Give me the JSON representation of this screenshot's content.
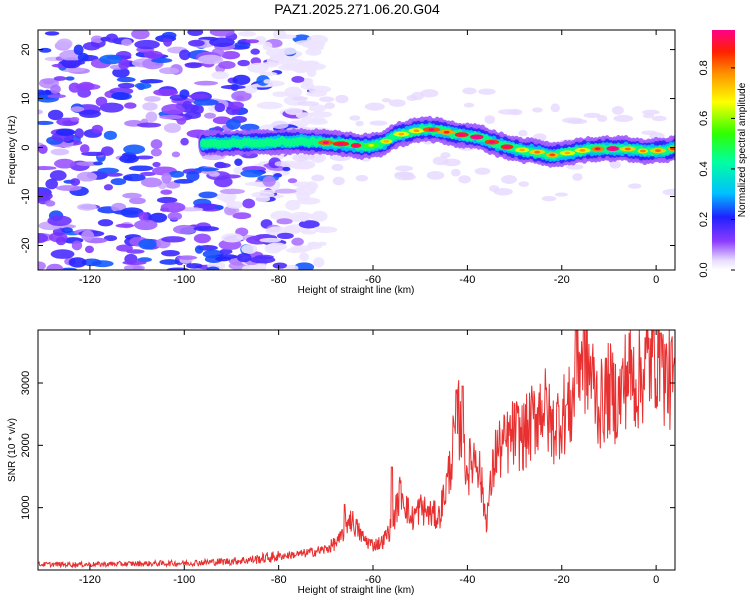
{
  "title": "PAZ1.2025.271.06.20.G04",
  "colors": {
    "snr_line": "#e83030",
    "frame": "#000000",
    "background": "#ffffff"
  },
  "chart_data": [
    {
      "type": "heatmap",
      "xlabel": "Height of straight line (km)",
      "ylabel": "Frequency (Hz)",
      "xlim": [
        -131,
        4
      ],
      "ylim": [
        -25,
        24
      ],
      "xticks": [
        -120,
        -100,
        -80,
        -60,
        -40,
        -20,
        0
      ],
      "yticks": [
        -20,
        -10,
        0,
        10,
        20
      ],
      "colorbar": {
        "label": "Normalized spectral amplitude",
        "range": [
          0,
          0.95
        ],
        "ticks": [
          0.0,
          0.2,
          0.4,
          0.6,
          0.8
        ]
      },
      "ridge": {
        "description": "dominant frequency ridge vs height",
        "points": [
          [
            -95,
            0.8
          ],
          [
            -90,
            1.0
          ],
          [
            -85,
            1.0
          ],
          [
            -80,
            1.2
          ],
          [
            -75,
            1.3
          ],
          [
            -70,
            1.0
          ],
          [
            -65,
            0.6
          ],
          [
            -62,
            0.2
          ],
          [
            -58,
            0.8
          ],
          [
            -55,
            2.5
          ],
          [
            -52,
            3.2
          ],
          [
            -49,
            3.8
          ],
          [
            -46,
            3.5
          ],
          [
            -43,
            2.8
          ],
          [
            -40,
            2.5
          ],
          [
            -37,
            2.0
          ],
          [
            -34,
            0.8
          ],
          [
            -30,
            -0.3
          ],
          [
            -26,
            -0.8
          ],
          [
            -22,
            -1.5
          ],
          [
            -18,
            -1.0
          ],
          [
            -14,
            -0.3
          ],
          [
            -10,
            -0.2
          ],
          [
            -6,
            -0.3
          ],
          [
            -2,
            -0.8
          ],
          [
            2,
            -0.5
          ],
          [
            4,
            -0.2
          ]
        ],
        "peak_amplitude": 0.95,
        "noise_region_height_max_km": -80,
        "noise_amplitude_range": [
          0.05,
          0.25
        ]
      }
    },
    {
      "type": "line",
      "xlabel": "Height of straight line (km)",
      "ylabel": "SNR (10 * v/v)",
      "xlim": [
        -131,
        4
      ],
      "ylim": [
        0,
        3850
      ],
      "xticks": [
        -120,
        -100,
        -80,
        -60,
        -40,
        -20,
        0
      ],
      "yticks": [
        1000,
        2000,
        3000
      ],
      "series": [
        {
          "name": "SNR",
          "envelope_points": [
            [
              -131,
              90
            ],
            [
              -120,
              90
            ],
            [
              -100,
              110
            ],
            [
              -90,
              140
            ],
            [
              -85,
              170
            ],
            [
              -80,
              220
            ],
            [
              -75,
              260
            ],
            [
              -70,
              330
            ],
            [
              -67,
              480
            ],
            [
              -65,
              850
            ],
            [
              -62,
              500
            ],
            [
              -60,
              400
            ],
            [
              -58,
              450
            ],
            [
              -56,
              700
            ],
            [
              -54,
              1300
            ],
            [
              -52,
              800
            ],
            [
              -50,
              1000
            ],
            [
              -48,
              900
            ],
            [
              -46,
              850
            ],
            [
              -44,
              1500
            ],
            [
              -42,
              2500
            ],
            [
              -40,
              1600
            ],
            [
              -38,
              1900
            ],
            [
              -36,
              800
            ],
            [
              -34,
              1900
            ],
            [
              -32,
              2000
            ],
            [
              -30,
              2200
            ],
            [
              -28,
              2150
            ],
            [
              -26,
              2400
            ],
            [
              -24,
              2700
            ],
            [
              -22,
              2250
            ],
            [
              -20,
              2500
            ],
            [
              -18,
              2600
            ],
            [
              -16,
              3500
            ],
            [
              -14,
              3200
            ],
            [
              -12,
              2600
            ],
            [
              -10,
              2900
            ],
            [
              -8,
              2700
            ],
            [
              -6,
              3200
            ],
            [
              -4,
              3000
            ],
            [
              -2,
              3300
            ],
            [
              0,
              3500
            ],
            [
              2,
              3100
            ],
            [
              4,
              3000
            ]
          ],
          "highlights": [
            [
              -66,
              1050
            ],
            [
              -56,
              1650
            ],
            [
              -41,
              2950
            ],
            [
              -17,
              3850
            ],
            [
              1,
              3800
            ]
          ]
        }
      ]
    }
  ]
}
